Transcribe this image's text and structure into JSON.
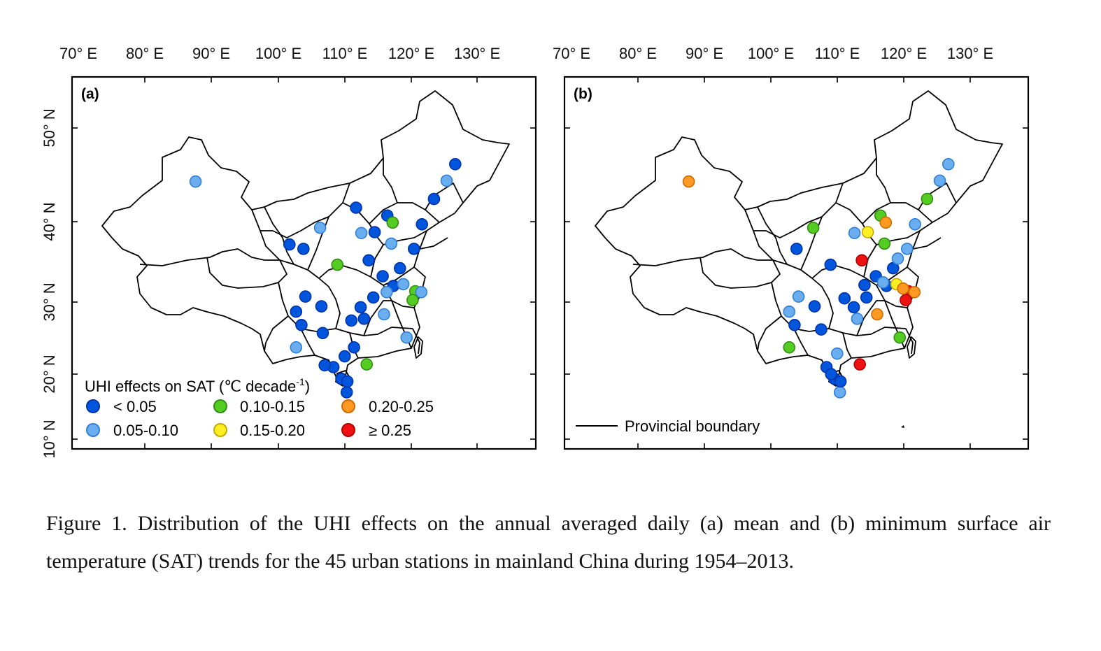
{
  "chart_data": [
    {
      "type": "map",
      "panel": "(a)",
      "x_ticks": [
        "70° E",
        "80° E",
        "90° E",
        "100° E",
        "110° E",
        "120° E",
        "130° E"
      ],
      "y_ticks": [
        "50° N",
        "40° N",
        "30° N",
        "20° N",
        "10° N"
      ],
      "legend_title": "UHI effects on SAT (℃ decade",
      "legend_title_sup": "-1",
      "legend_title_end": ")",
      "legend": [
        {
          "label": "< 0.05",
          "color": "#0055dd"
        },
        {
          "label": "0.05-0.10",
          "color": "#6aaef0"
        },
        {
          "label": "0.10-0.15",
          "color": "#55cc22"
        },
        {
          "label": "0.15-0.20",
          "color": "#ffee22"
        },
        {
          "label": "0.20-0.25",
          "color": "#ff9922"
        },
        {
          "label": "≥ 0.25",
          "color": "#ee1111"
        }
      ],
      "stations": [
        {
          "lon": 87.6,
          "lat": 43.8,
          "class": 1
        },
        {
          "lon": 126.6,
          "lat": 45.8,
          "class": 0
        },
        {
          "lon": 123.4,
          "lat": 41.8,
          "class": 0
        },
        {
          "lon": 125.3,
          "lat": 43.9,
          "class": 1
        },
        {
          "lon": 116.4,
          "lat": 39.9,
          "class": 0
        },
        {
          "lon": 117.2,
          "lat": 39.1,
          "class": 2
        },
        {
          "lon": 114.5,
          "lat": 38.0,
          "class": 0
        },
        {
          "lon": 112.5,
          "lat": 37.9,
          "class": 1
        },
        {
          "lon": 111.7,
          "lat": 40.8,
          "class": 0
        },
        {
          "lon": 121.6,
          "lat": 38.9,
          "class": 0
        },
        {
          "lon": 117.0,
          "lat": 36.7,
          "class": 1
        },
        {
          "lon": 120.4,
          "lat": 36.1,
          "class": 0
        },
        {
          "lon": 103.8,
          "lat": 36.1,
          "class": 0
        },
        {
          "lon": 106.3,
          "lat": 38.5,
          "class": 1
        },
        {
          "lon": 108.9,
          "lat": 34.3,
          "class": 2
        },
        {
          "lon": 113.6,
          "lat": 34.8,
          "class": 0
        },
        {
          "lon": 117.3,
          "lat": 31.9,
          "class": 0
        },
        {
          "lon": 118.8,
          "lat": 32.1,
          "class": 1
        },
        {
          "lon": 120.6,
          "lat": 31.3,
          "class": 2
        },
        {
          "lon": 121.5,
          "lat": 31.2,
          "class": 1
        },
        {
          "lon": 120.2,
          "lat": 30.3,
          "class": 2
        },
        {
          "lon": 114.3,
          "lat": 30.6,
          "class": 0
        },
        {
          "lon": 112.9,
          "lat": 28.2,
          "class": 0
        },
        {
          "lon": 115.9,
          "lat": 28.7,
          "class": 1
        },
        {
          "lon": 104.1,
          "lat": 30.7,
          "class": 0
        },
        {
          "lon": 106.5,
          "lat": 29.6,
          "class": 0
        },
        {
          "lon": 106.7,
          "lat": 26.6,
          "class": 0
        },
        {
          "lon": 102.7,
          "lat": 25.0,
          "class": 1
        },
        {
          "lon": 108.3,
          "lat": 22.8,
          "class": 0
        },
        {
          "lon": 113.3,
          "lat": 23.1,
          "class": 2
        },
        {
          "lon": 119.3,
          "lat": 26.1,
          "class": 1
        },
        {
          "lon": 110.3,
          "lat": 20.0,
          "class": 0
        },
        {
          "lon": 109.5,
          "lat": 21.5,
          "class": 0
        },
        {
          "lon": 110.4,
          "lat": 21.2,
          "class": 0
        },
        {
          "lon": 111.0,
          "lat": 28.0,
          "class": 0
        },
        {
          "lon": 102.7,
          "lat": 29.0,
          "class": 0
        },
        {
          "lon": 103.5,
          "lat": 27.5,
          "class": 0
        },
        {
          "lon": 101.7,
          "lat": 36.6,
          "class": 0
        },
        {
          "lon": 118.3,
          "lat": 33.9,
          "class": 0
        },
        {
          "lon": 115.7,
          "lat": 33.0,
          "class": 0
        },
        {
          "lon": 112.4,
          "lat": 29.5,
          "class": 0
        },
        {
          "lon": 111.4,
          "lat": 25.0,
          "class": 0
        },
        {
          "lon": 110.0,
          "lat": 24.0,
          "class": 0
        },
        {
          "lon": 107.0,
          "lat": 23.0,
          "class": 0
        },
        {
          "lon": 116.3,
          "lat": 31.2,
          "class": 1
        }
      ]
    },
    {
      "type": "map",
      "panel": "(b)",
      "x_ticks": [
        "70° E",
        "80° E",
        "90° E",
        "100° E",
        "110° E",
        "120° E",
        "130° E"
      ],
      "boundary_legend": "Provincial boundary",
      "stations": [
        {
          "lon": 87.6,
          "lat": 43.8,
          "class": 4
        },
        {
          "lon": 126.6,
          "lat": 45.8,
          "class": 1
        },
        {
          "lon": 123.4,
          "lat": 41.8,
          "class": 2
        },
        {
          "lon": 125.3,
          "lat": 43.9,
          "class": 1
        },
        {
          "lon": 116.4,
          "lat": 39.9,
          "class": 2
        },
        {
          "lon": 117.2,
          "lat": 39.1,
          "class": 4
        },
        {
          "lon": 114.5,
          "lat": 38.0,
          "class": 3
        },
        {
          "lon": 112.5,
          "lat": 37.9,
          "class": 1
        },
        {
          "lon": 121.6,
          "lat": 38.9,
          "class": 1
        },
        {
          "lon": 117.0,
          "lat": 36.7,
          "class": 2
        },
        {
          "lon": 120.4,
          "lat": 36.1,
          "class": 1
        },
        {
          "lon": 103.8,
          "lat": 36.1,
          "class": 0
        },
        {
          "lon": 106.3,
          "lat": 38.5,
          "class": 2
        },
        {
          "lon": 113.6,
          "lat": 34.8,
          "class": 5
        },
        {
          "lon": 117.3,
          "lat": 31.9,
          "class": 0
        },
        {
          "lon": 118.8,
          "lat": 32.1,
          "class": 3
        },
        {
          "lon": 120.6,
          "lat": 31.3,
          "class": 5
        },
        {
          "lon": 121.5,
          "lat": 31.2,
          "class": 4
        },
        {
          "lon": 120.2,
          "lat": 30.3,
          "class": 5
        },
        {
          "lon": 119.8,
          "lat": 31.6,
          "class": 4
        },
        {
          "lon": 114.3,
          "lat": 30.6,
          "class": 0
        },
        {
          "lon": 112.9,
          "lat": 28.2,
          "class": 1
        },
        {
          "lon": 115.9,
          "lat": 28.7,
          "class": 4
        },
        {
          "lon": 104.1,
          "lat": 30.7,
          "class": 1
        },
        {
          "lon": 106.5,
          "lat": 29.6,
          "class": 0
        },
        {
          "lon": 108.9,
          "lat": 34.3,
          "class": 0
        },
        {
          "lon": 102.7,
          "lat": 29.0,
          "class": 1
        },
        {
          "lon": 102.7,
          "lat": 25.0,
          "class": 2
        },
        {
          "lon": 103.5,
          "lat": 27.5,
          "class": 0
        },
        {
          "lon": 108.3,
          "lat": 22.8,
          "class": 0
        },
        {
          "lon": 113.3,
          "lat": 23.1,
          "class": 5
        },
        {
          "lon": 119.3,
          "lat": 26.1,
          "class": 2
        },
        {
          "lon": 110.3,
          "lat": 20.0,
          "class": 1
        },
        {
          "lon": 109.5,
          "lat": 21.5,
          "class": 0
        },
        {
          "lon": 110.4,
          "lat": 21.2,
          "class": 0
        },
        {
          "lon": 109.9,
          "lat": 24.3,
          "class": 1
        },
        {
          "lon": 112.4,
          "lat": 29.5,
          "class": 0
        },
        {
          "lon": 118.3,
          "lat": 33.9,
          "class": 0
        },
        {
          "lon": 115.7,
          "lat": 33.0,
          "class": 0
        },
        {
          "lon": 107.5,
          "lat": 27.0,
          "class": 0
        },
        {
          "lon": 111.0,
          "lat": 30.5,
          "class": 0
        },
        {
          "lon": 114.0,
          "lat": 32.0,
          "class": 0
        },
        {
          "lon": 116.8,
          "lat": 32.3,
          "class": 1
        },
        {
          "lon": 119.0,
          "lat": 35.0,
          "class": 1
        },
        {
          "lon": 109.0,
          "lat": 22.0,
          "class": 0
        }
      ]
    }
  ],
  "caption": "Figure 1. Distribution of the UHI effects on the annual averaged daily (a) mean and (b) minimum surface air temperature (SAT) trends for the 45 urban stations in mainland China during 1954–2013."
}
